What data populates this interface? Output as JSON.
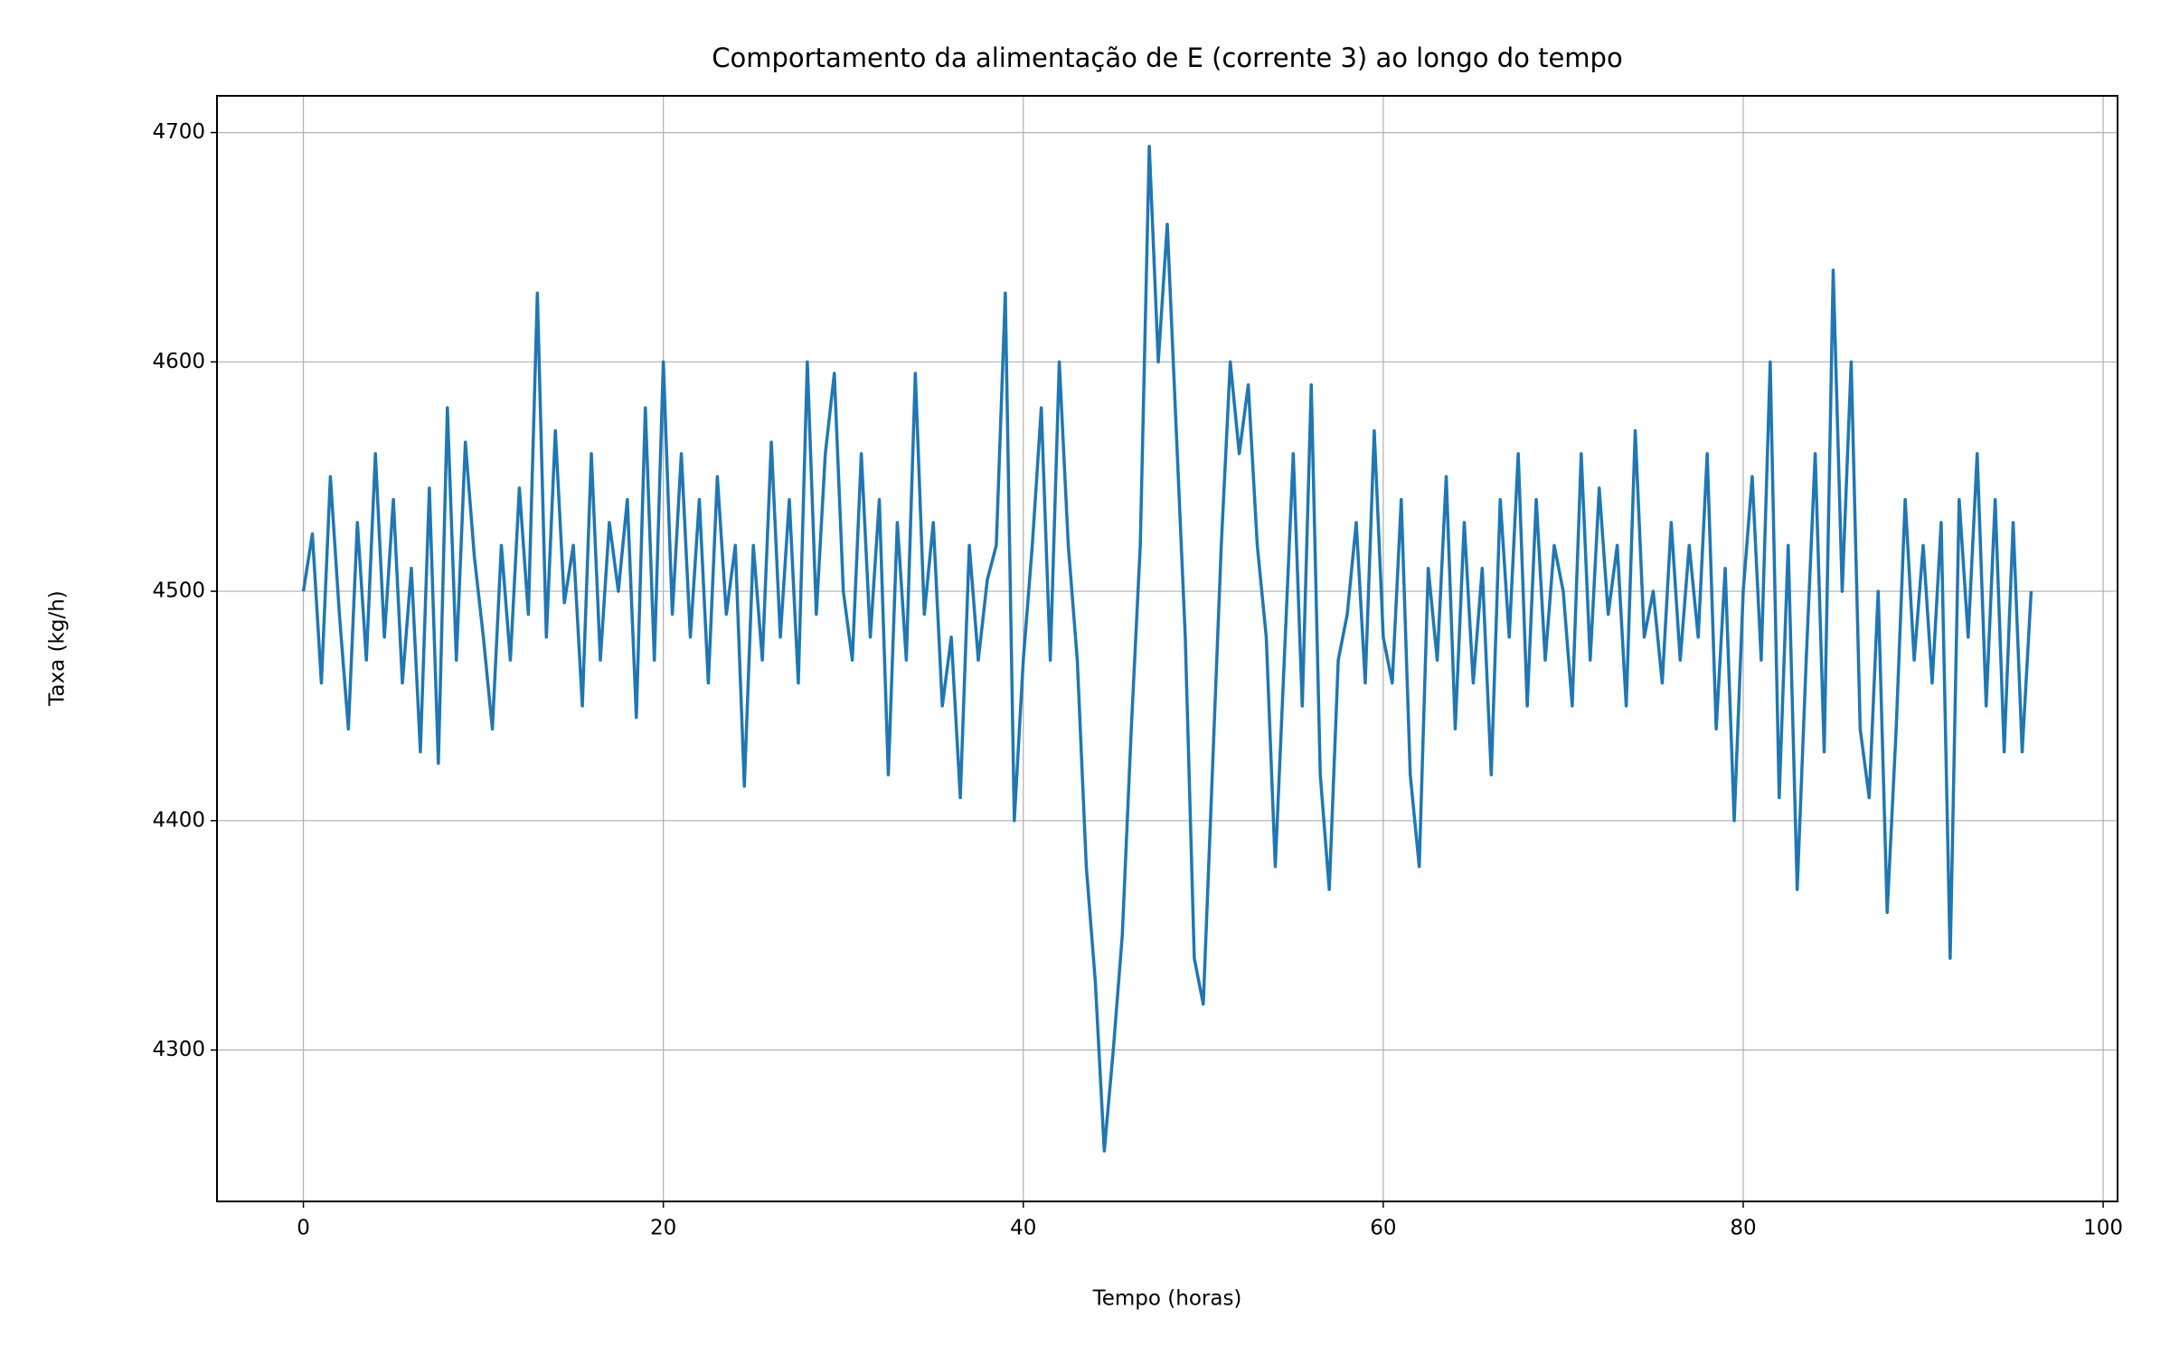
{
  "chart_data": {
    "type": "line",
    "title": "Comportamento da alimentação de E (corrente 3) ao longo do tempo",
    "x_label": "Tempo (horas)",
    "y_label": "Taxa (kg/h)",
    "x": [
      0,
      0.5,
      1,
      1.5,
      2,
      2.5,
      3,
      3.5,
      4,
      4.5,
      5,
      5.5,
      6,
      6.5,
      7,
      7.5,
      8,
      8.5,
      9,
      9.5,
      10,
      10.5,
      11,
      11.5,
      12,
      12.5,
      13,
      13.5,
      14,
      14.5,
      15,
      15.5,
      16,
      16.5,
      17,
      17.5,
      18,
      18.5,
      19,
      19.5,
      20,
      20.5,
      21,
      21.5,
      22,
      22.5,
      23,
      23.5,
      24,
      24.5,
      25,
      25.5,
      26,
      26.5,
      27,
      27.5,
      28,
      28.5,
      29,
      29.5,
      30,
      30.5,
      31,
      31.5,
      32,
      32.5,
      33,
      33.5,
      34,
      34.5,
      35,
      35.5,
      36,
      36.5,
      37,
      37.5,
      38,
      38.5,
      39,
      39.5,
      40,
      40.5,
      41,
      41.5,
      42,
      42.5,
      43,
      43.5,
      44,
      44.5,
      45,
      45.5,
      46,
      46.5,
      47,
      47.5,
      48,
      48.5,
      49,
      49.5,
      50,
      50.5,
      51,
      51.5,
      52,
      52.5,
      53,
      53.5,
      54,
      54.5,
      55,
      55.5,
      56,
      56.5,
      57,
      57.5,
      58,
      58.5,
      59,
      59.5,
      60,
      60.5,
      61,
      61.5,
      62,
      62.5,
      63,
      63.5,
      64,
      64.5,
      65,
      65.5,
      66,
      66.5,
      67,
      67.5,
      68,
      68.5,
      69,
      69.5,
      70,
      70.5,
      71,
      71.5,
      72,
      72.5,
      73,
      73.5,
      74,
      74.5,
      75,
      75.5,
      76,
      76.5,
      77,
      77.5,
      78,
      78.5,
      79,
      79.5,
      80,
      80.5,
      81,
      81.5,
      82,
      82.5,
      83,
      83.5,
      84,
      84.5,
      85,
      85.5,
      86,
      86.5,
      87,
      87.5,
      88,
      88.5,
      89,
      89.5,
      90,
      90.5,
      91,
      91.5,
      92,
      92.5,
      93,
      93.5,
      94,
      94.5,
      95,
      95.5,
      96
    ],
    "values": [
      4500,
      4525,
      4460,
      4550,
      4490,
      4440,
      4530,
      4470,
      4560,
      4480,
      4540,
      4460,
      4510,
      4430,
      4545,
      4425,
      4580,
      4470,
      4565,
      4515,
      4480,
      4440,
      4520,
      4470,
      4545,
      4490,
      4630,
      4480,
      4570,
      4495,
      4520,
      4450,
      4560,
      4470,
      4530,
      4500,
      4540,
      4445,
      4580,
      4470,
      4600,
      4490,
      4560,
      4480,
      4540,
      4460,
      4550,
      4490,
      4520,
      4415,
      4520,
      4470,
      4565,
      4480,
      4540,
      4460,
      4600,
      4490,
      4560,
      4595,
      4500,
      4470,
      4560,
      4480,
      4540,
      4420,
      4530,
      4470,
      4595,
      4490,
      4530,
      4450,
      4480,
      4410,
      4520,
      4470,
      4505,
      4520,
      4630,
      4400,
      4470,
      4520,
      4580,
      4470,
      4600,
      4520,
      4470,
      4380,
      4330,
      4256,
      4300,
      4350,
      4440,
      4520,
      4694,
      4600,
      4660,
      4570,
      4480,
      4340,
      4320,
      4420,
      4520,
      4600,
      4560,
      4590,
      4520,
      4480,
      4380,
      4470,
      4560,
      4450,
      4590,
      4420,
      4370,
      4470,
      4490,
      4530,
      4460,
      4570,
      4480,
      4460,
      4540,
      4420,
      4380,
      4510,
      4470,
      4550,
      4440,
      4530,
      4460,
      4510,
      4420,
      4540,
      4480,
      4560,
      4450,
      4540,
      4470,
      4520,
      4500,
      4450,
      4560,
      4470,
      4545,
      4490,
      4520,
      4450,
      4570,
      4480,
      4500,
      4460,
      4530,
      4470,
      4520,
      4480,
      4560,
      4440,
      4510,
      4400,
      4500,
      4550,
      4470,
      4600,
      4410,
      4520,
      4370,
      4470,
      4560,
      4430,
      4640,
      4500,
      4600,
      4440,
      4410,
      4500,
      4360,
      4440,
      4540,
      4470,
      4520,
      4460,
      4530,
      4340,
      4540,
      4480,
      4560,
      4450,
      4540,
      4430,
      4530,
      4430,
      4500
    ],
    "color": "#1f77b4",
    "xlim": [
      -4.8,
      100.8
    ],
    "xticks": [
      0,
      20,
      40,
      60,
      80,
      100
    ],
    "ylim": [
      4234,
      4716
    ],
    "yticks": [
      4300,
      4400,
      4500,
      4600,
      4700
    ],
    "grid": true
  }
}
